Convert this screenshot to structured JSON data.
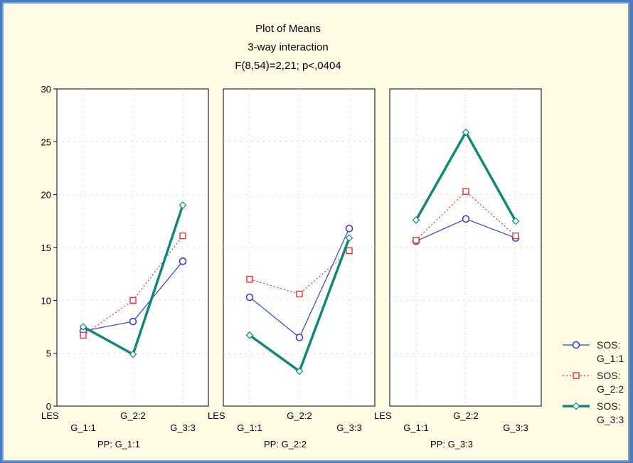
{
  "chart_data": {
    "type": "line",
    "title": "Plot of Means",
    "subtitle": "3-way interaction",
    "statistic": "F(8,54)=2,21; p<,0404",
    "xlabel": "LES",
    "ylim": [
      0,
      30
    ],
    "yticks": [
      "0",
      "5",
      "10",
      "15",
      "20",
      "25",
      "30"
    ],
    "categories": [
      "G_1:1",
      "G_2:2",
      "G_3:3"
    ],
    "grid": true,
    "legend_position": "right",
    "panels": [
      {
        "label": "PP: G_1:1",
        "series": [
          {
            "name": "SOS: G_1:1",
            "values": [
              7.1,
              8.0,
              13.7
            ]
          },
          {
            "name": "SOS: G_2:2",
            "values": [
              6.7,
              10.0,
              16.1
            ]
          },
          {
            "name": "SOS: G_3:3",
            "values": [
              7.5,
              4.9,
              19.0
            ]
          }
        ]
      },
      {
        "label": "PP: G_2:2",
        "series": [
          {
            "name": "SOS: G_1:1",
            "values": [
              10.3,
              6.5,
              16.8
            ]
          },
          {
            "name": "SOS: G_2:2",
            "values": [
              12.0,
              10.6,
              14.7
            ]
          },
          {
            "name": "SOS: G_3:3",
            "values": [
              6.7,
              3.3,
              15.9
            ]
          }
        ]
      },
      {
        "label": "PP: G_3:3",
        "series": [
          {
            "name": "SOS: G_1:1",
            "values": [
              15.6,
              17.7,
              15.9
            ]
          },
          {
            "name": "SOS: G_2:2",
            "values": [
              15.7,
              20.3,
              16.1
            ]
          },
          {
            "name": "SOS: G_3:3",
            "values": [
              17.6,
              25.9,
              17.5
            ]
          }
        ]
      }
    ],
    "legend": [
      {
        "line1": "SOS:",
        "line2": "G_1:1",
        "color": "#3344cc",
        "marker": "circle",
        "style": "solid-thin"
      },
      {
        "line1": "SOS:",
        "line2": "G_2:2",
        "color": "#e23333",
        "marker": "square",
        "style": "dotted"
      },
      {
        "line1": "SOS:",
        "line2": "G_3:3",
        "color": "#118877",
        "marker": "diamond",
        "style": "solid-thick"
      }
    ]
  }
}
